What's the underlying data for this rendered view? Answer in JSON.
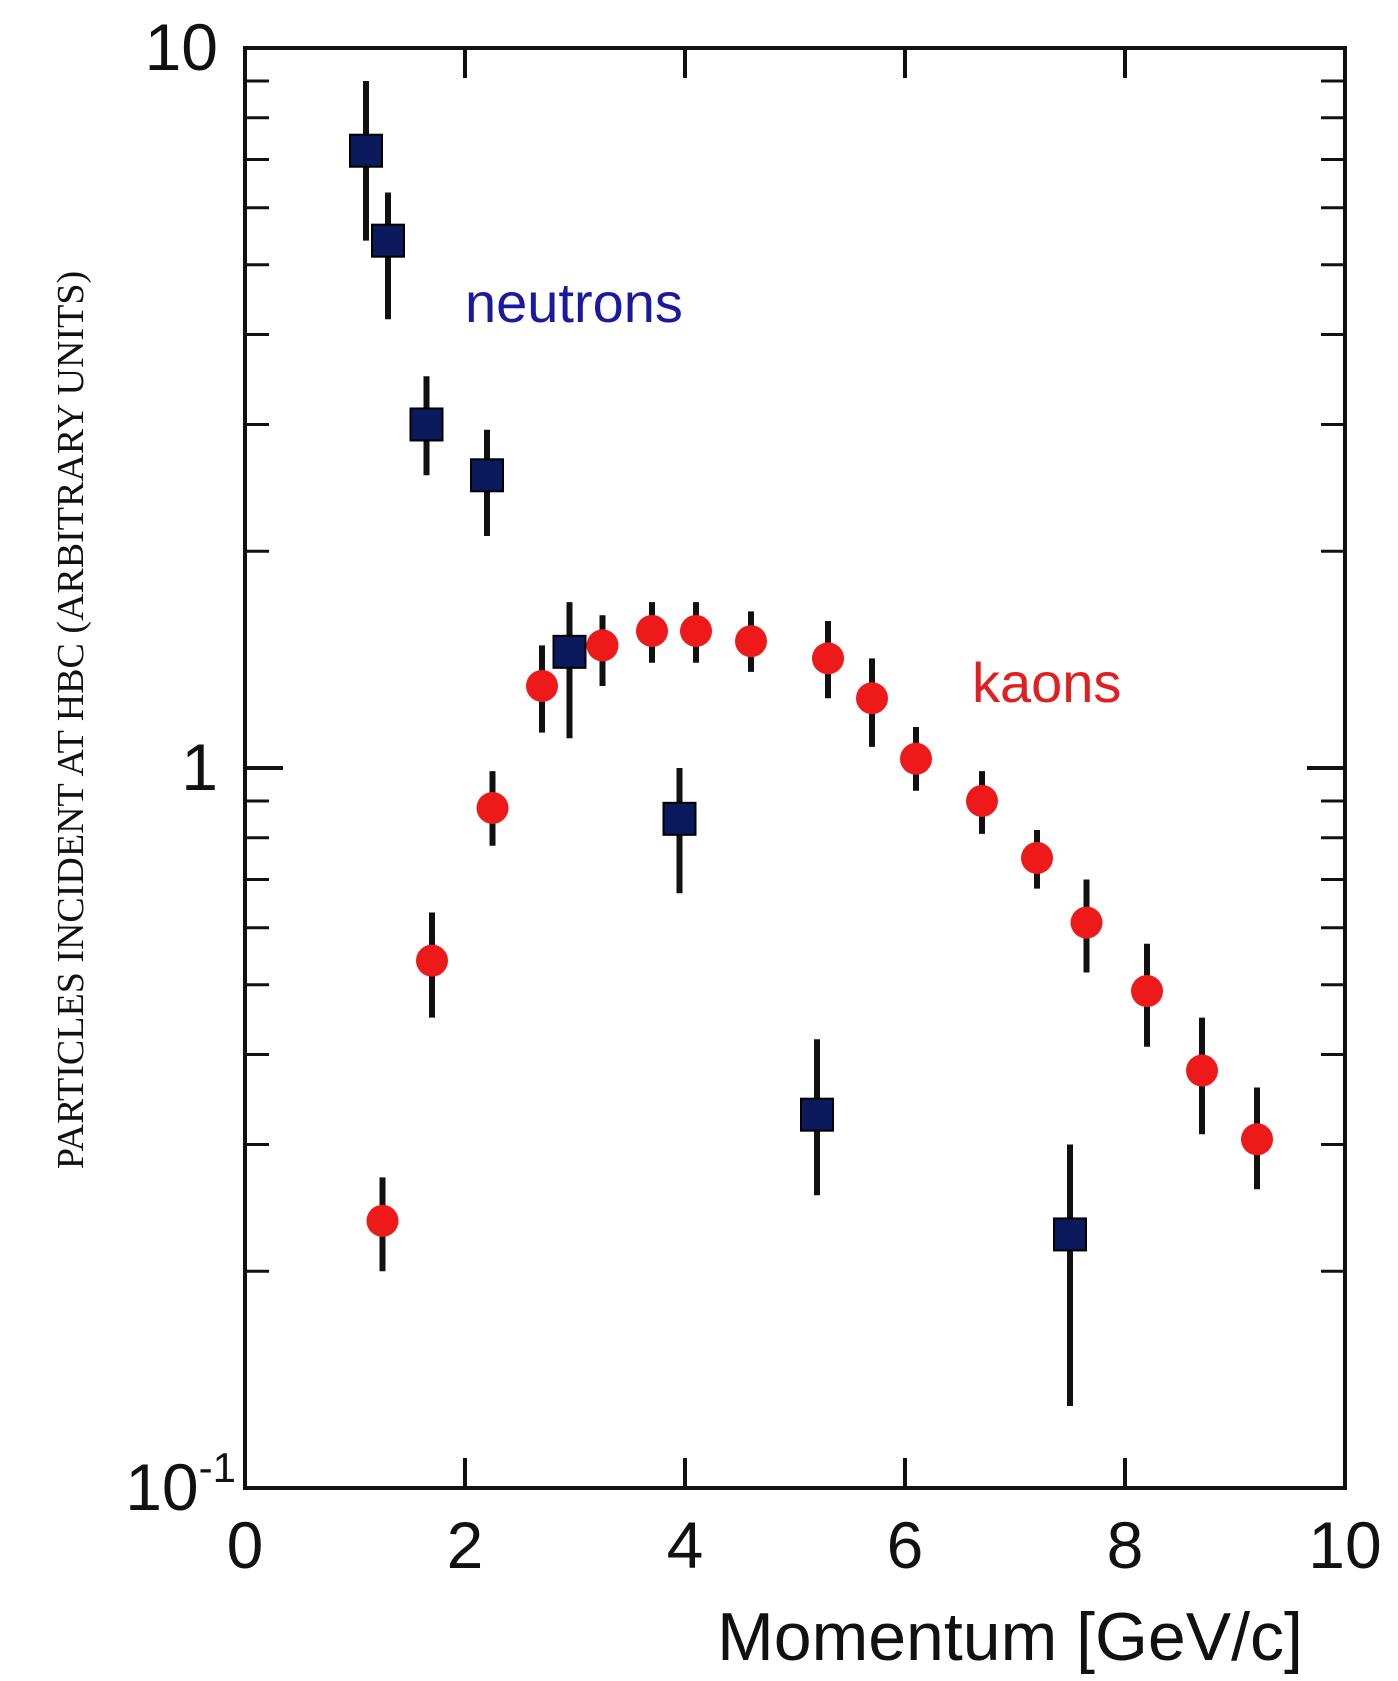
{
  "chart_data": {
    "type": "scatter",
    "title": "",
    "xlabel": "Momentum [GeV/c]",
    "ylabel": "PARTICLES INCIDENT AT HBC (ARBITRARY UNITS)",
    "xlim": [
      0,
      10
    ],
    "ylim": [
      0.1,
      10
    ],
    "yscale": "log",
    "grid": false,
    "x_ticks": [
      "0",
      "2",
      "4",
      "6",
      "8",
      "10"
    ],
    "y_ticks": [
      {
        "value": 0.1,
        "base": "10",
        "exp": "-1"
      },
      {
        "value": 1,
        "base": "1",
        "exp": ""
      },
      {
        "value": 10,
        "base": "10",
        "exp": ""
      }
    ],
    "series": [
      {
        "name": "neutrons",
        "color": "#0a1a5c",
        "label_color": "#1a1aa0",
        "marker": "square",
        "points": [
          {
            "x": 1.1,
            "y": 7.2,
            "lo": 5.4,
            "hi": 9.0
          },
          {
            "x": 1.3,
            "y": 5.4,
            "lo": 4.2,
            "hi": 6.3
          },
          {
            "x": 1.65,
            "y": 3.0,
            "lo": 2.55,
            "hi": 3.5
          },
          {
            "x": 2.2,
            "y": 2.55,
            "lo": 2.1,
            "hi": 2.95
          },
          {
            "x": 2.95,
            "y": 1.45,
            "lo": 1.1,
            "hi": 1.7
          },
          {
            "x": 3.95,
            "y": 0.85,
            "lo": 0.67,
            "hi": 1.0
          },
          {
            "x": 5.2,
            "y": 0.33,
            "lo": 0.255,
            "hi": 0.42
          },
          {
            "x": 7.5,
            "y": 0.225,
            "lo": 0.13,
            "hi": 0.3
          }
        ]
      },
      {
        "name": "kaons",
        "color": "#ee1a1a",
        "label_color": "#e02020",
        "marker": "circle",
        "points": [
          {
            "x": 1.25,
            "y": 0.235,
            "lo": 0.2,
            "hi": 0.27
          },
          {
            "x": 1.7,
            "y": 0.54,
            "lo": 0.45,
            "hi": 0.63
          },
          {
            "x": 2.25,
            "y": 0.88,
            "lo": 0.78,
            "hi": 0.99
          },
          {
            "x": 2.7,
            "y": 1.3,
            "lo": 1.12,
            "hi": 1.48
          },
          {
            "x": 3.25,
            "y": 1.48,
            "lo": 1.3,
            "hi": 1.63
          },
          {
            "x": 3.7,
            "y": 1.55,
            "lo": 1.4,
            "hi": 1.7
          },
          {
            "x": 4.1,
            "y": 1.55,
            "lo": 1.4,
            "hi": 1.7
          },
          {
            "x": 4.6,
            "y": 1.5,
            "lo": 1.36,
            "hi": 1.65
          },
          {
            "x": 5.3,
            "y": 1.42,
            "lo": 1.25,
            "hi": 1.6
          },
          {
            "x": 5.7,
            "y": 1.25,
            "lo": 1.07,
            "hi": 1.42
          },
          {
            "x": 6.1,
            "y": 1.03,
            "lo": 0.93,
            "hi": 1.14
          },
          {
            "x": 6.7,
            "y": 0.9,
            "lo": 0.81,
            "hi": 0.99
          },
          {
            "x": 7.2,
            "y": 0.75,
            "lo": 0.68,
            "hi": 0.82
          },
          {
            "x": 7.65,
            "y": 0.61,
            "lo": 0.52,
            "hi": 0.7
          },
          {
            "x": 8.2,
            "y": 0.49,
            "lo": 0.41,
            "hi": 0.57
          },
          {
            "x": 8.7,
            "y": 0.38,
            "lo": 0.31,
            "hi": 0.45
          },
          {
            "x": 9.2,
            "y": 0.305,
            "lo": 0.26,
            "hi": 0.36
          }
        ]
      }
    ]
  }
}
